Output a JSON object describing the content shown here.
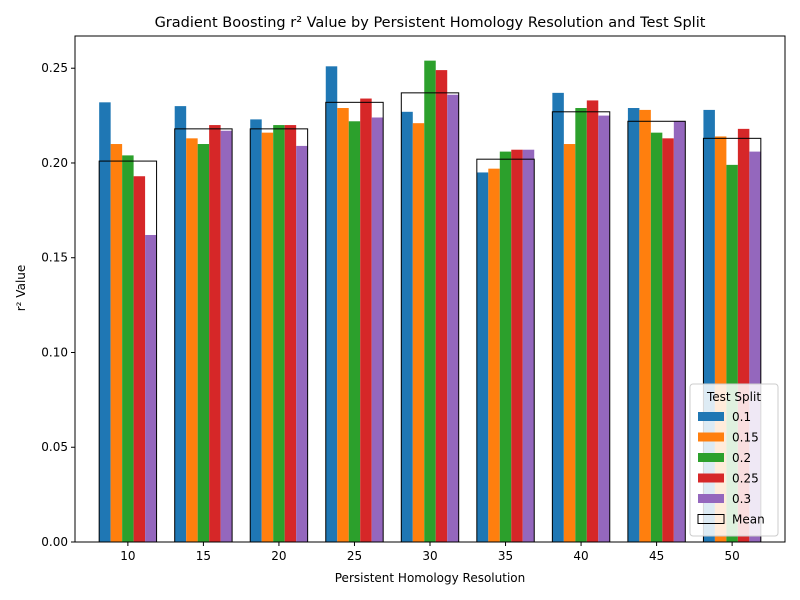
{
  "chart_data": {
    "type": "bar",
    "title": "Gradient Boosting r² Value by Persistent Homology Resolution and Test Split",
    "xlabel": "Persistent Homology Resolution",
    "ylabel": "r² Value",
    "categories": [
      "10",
      "15",
      "20",
      "25",
      "30",
      "35",
      "40",
      "45",
      "50"
    ],
    "ylim": [
      0,
      0.267
    ],
    "yticks": [
      "0.00",
      "0.05",
      "0.10",
      "0.15",
      "0.20",
      "0.25"
    ],
    "legend": {
      "title": "Test Split",
      "placement": "lower-right"
    },
    "series": [
      {
        "name": "0.1",
        "color": "#1f77b4",
        "values": [
          0.232,
          0.23,
          0.223,
          0.251,
          0.227,
          0.195,
          0.237,
          0.229,
          0.228
        ]
      },
      {
        "name": "0.15",
        "color": "#ff7f0e",
        "values": [
          0.21,
          0.213,
          0.216,
          0.229,
          0.221,
          0.197,
          0.21,
          0.228,
          0.214
        ]
      },
      {
        "name": "0.2",
        "color": "#2ca02c",
        "values": [
          0.204,
          0.21,
          0.22,
          0.222,
          0.254,
          0.206,
          0.229,
          0.216,
          0.199
        ]
      },
      {
        "name": "0.25",
        "color": "#d62728",
        "values": [
          0.193,
          0.22,
          0.22,
          0.234,
          0.249,
          0.207,
          0.233,
          0.213,
          0.218
        ]
      },
      {
        "name": "0.3",
        "color": "#9467bd",
        "values": [
          0.162,
          0.217,
          0.209,
          0.224,
          0.236,
          0.207,
          0.225,
          0.222,
          0.206
        ]
      }
    ],
    "mean": {
      "name": "Mean",
      "values": [
        0.201,
        0.218,
        0.218,
        0.232,
        0.237,
        0.202,
        0.227,
        0.222,
        0.213
      ]
    }
  }
}
